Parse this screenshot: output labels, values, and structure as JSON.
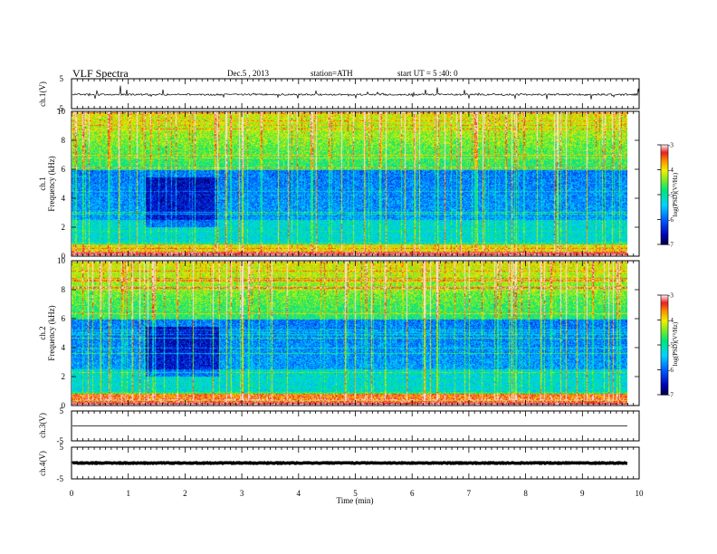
{
  "header": {
    "title": "VLF  Spectra",
    "date": "Dec.5  , 2013",
    "station": "station=ATH",
    "start": "start  UT  =   5  :40: 0"
  },
  "chart_data": [
    {
      "id": "ch1-waveform",
      "type": "line",
      "ylabel": "ch.1(V)",
      "ylim": [
        -5,
        5
      ],
      "yticks": [
        "5",
        "-5"
      ],
      "xlim": [
        0,
        10
      ],
      "baseline": -0.3,
      "noise_amplitude": 0.6,
      "spike_amplitude": 2.5
    },
    {
      "id": "ch1-spectrogram",
      "type": "heatmap",
      "ylabel": "Frequency  (kHz)",
      "channel_label": "ch.1",
      "ylim": [
        0,
        10
      ],
      "yticks": [
        "0",
        "2",
        "4",
        "6",
        "8",
        "10"
      ],
      "xlim": [
        0,
        9.8
      ],
      "colorbar": {
        "label": "log(PSD)(V²/Hz)",
        "range": [
          -7,
          -3
        ],
        "ticks": [
          "-3",
          "-4",
          "-5",
          "-6",
          "-7"
        ]
      }
    },
    {
      "id": "ch2-spectrogram",
      "type": "heatmap",
      "ylabel": "Frequency  (kHz)",
      "channel_label": "ch.2",
      "ylim": [
        0,
        10
      ],
      "yticks": [
        "0",
        "2",
        "4",
        "6",
        "8",
        "10"
      ],
      "xlim": [
        0,
        9.8
      ],
      "colorbar": {
        "label": "log(PSD)(V²/Hz)",
        "range": [
          -7,
          -3
        ],
        "ticks": [
          "-3",
          "-4",
          "-5",
          "-6",
          "-7"
        ]
      }
    },
    {
      "id": "ch3-waveform",
      "type": "line",
      "ylabel": "ch.3(V)",
      "ylim": [
        -5,
        5
      ],
      "yticks": [
        "5",
        "-5"
      ],
      "xlim": [
        0,
        9.8
      ],
      "baseline": 0.0,
      "noise_amplitude": 0.02,
      "spike_amplitude": 0
    },
    {
      "id": "ch4-waveform",
      "type": "line",
      "ylabel": "ch.4(V)",
      "ylim": [
        -5,
        5
      ],
      "yticks": [
        "5",
        "-5"
      ],
      "xlim": [
        0,
        9.8
      ],
      "baseline": 0.0,
      "noise_amplitude": 0.25,
      "spike_amplitude": 0
    }
  ],
  "x_axis": {
    "label": "Time  (min)",
    "ticks": [
      "0",
      "1",
      "2",
      "3",
      "4",
      "5",
      "6",
      "7",
      "8",
      "9",
      "10"
    ],
    "range": [
      0,
      10
    ]
  }
}
